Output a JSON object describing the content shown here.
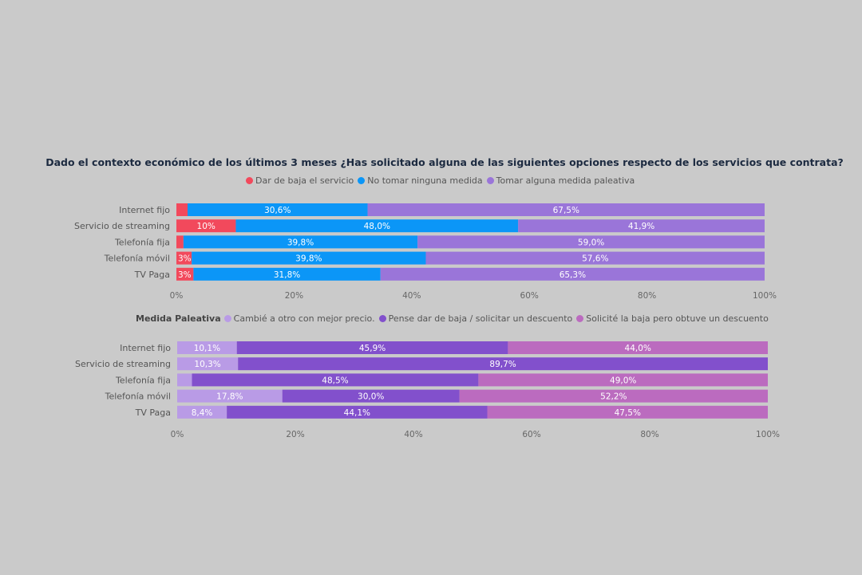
{
  "chart_data": [
    {
      "type": "bar",
      "orientation": "horizontal",
      "stacked": true,
      "title": "Dado el contexto económico de los últimos 3 meses ¿Has solicitado alguna de las siguientes opciones respecto de los servicios que contrata?",
      "legend_heading": "",
      "categories": [
        "Internet fijo",
        "Servicio de streaming",
        "Telefonía fija",
        "Telefonía móvil",
        "TV Paga"
      ],
      "xlim": [
        0,
        100
      ],
      "ticks": [
        "0%",
        "20%",
        "40%",
        "60%",
        "80%",
        "100%"
      ],
      "legend_placement": "top",
      "series": [
        {
          "name": "Dar de baja el servicio",
          "color": "#f2495c",
          "values": [
            1.9,
            10.1,
            1.2,
            2.6,
            2.9
          ],
          "labels": [
            "",
            "10%",
            "",
            "3%",
            "3%"
          ]
        },
        {
          "name": "No tomar ninguna medida",
          "color": "#0b96f7",
          "values": [
            30.6,
            48.0,
            39.8,
            39.8,
            31.8
          ],
          "labels": [
            "30,6%",
            "48,0%",
            "39,8%",
            "39,8%",
            "31,8%"
          ]
        },
        {
          "name": "Tomar alguna medida paleativa",
          "color": "#9a75d9",
          "values": [
            67.5,
            41.9,
            59.0,
            57.6,
            65.3
          ],
          "labels": [
            "67,5%",
            "41,9%",
            "59,0%",
            "57,6%",
            "65,3%"
          ]
        }
      ]
    },
    {
      "type": "bar",
      "orientation": "horizontal",
      "stacked": true,
      "title": "",
      "legend_heading": "Medida Paleativa",
      "categories": [
        "Internet fijo",
        "Servicio de streaming",
        "Telefonía fija",
        "Telefonía móvil",
        "TV Paga"
      ],
      "xlim": [
        0,
        100
      ],
      "ticks": [
        "0%",
        "20%",
        "40%",
        "60%",
        "80%",
        "100%"
      ],
      "legend_placement": "top",
      "series": [
        {
          "name": "Cambié a otro con mejor precio.",
          "color": "#b99be6",
          "values": [
            10.1,
            10.3,
            2.5,
            17.8,
            8.4
          ],
          "labels": [
            "10,1%",
            "10,3%",
            "",
            "17,8%",
            "8,4%"
          ]
        },
        {
          "name": "Pense dar de baja / solicitar un descuento",
          "color": "#8250cc",
          "values": [
            45.9,
            89.7,
            48.5,
            30.0,
            44.1
          ],
          "labels": [
            "45,9%",
            "89,7%",
            "48,5%",
            "30,0%",
            "44,1%"
          ]
        },
        {
          "name": "Solicité la baja pero obtuve un descuento",
          "color": "#bb6bbf",
          "values": [
            44.0,
            0,
            49.0,
            52.2,
            47.5
          ],
          "labels": [
            "44,0%",
            "",
            "49,0%",
            "52,2%",
            "47,5%"
          ]
        }
      ]
    }
  ]
}
